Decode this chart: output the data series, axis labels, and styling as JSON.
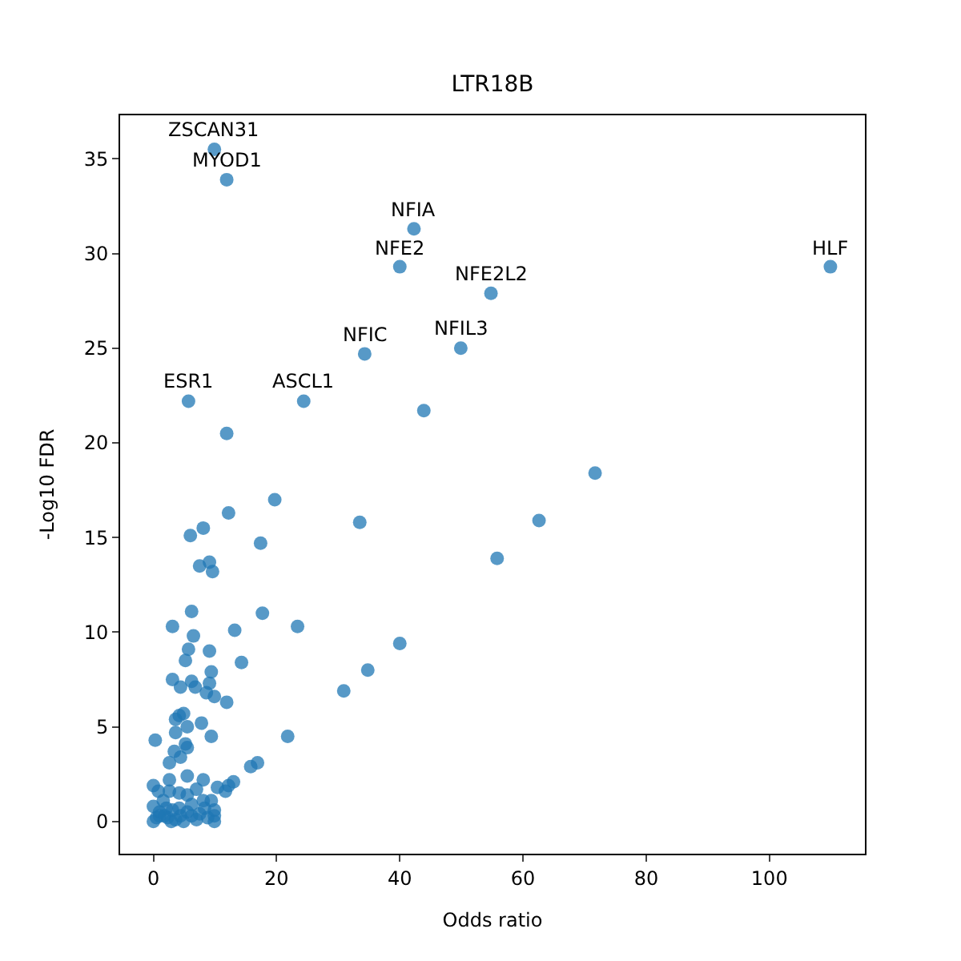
{
  "chart_data": {
    "type": "scatter",
    "title": "LTR18B",
    "xlabel": "Odds ratio",
    "ylabel": "-Log10 FDR",
    "xlim": [
      -5.4,
      115.5
    ],
    "ylim": [
      -1.7,
      37.3
    ],
    "xticks": [
      0,
      20,
      40,
      60,
      80,
      100
    ],
    "yticks": [
      0,
      5,
      10,
      15,
      20,
      25,
      30,
      35
    ],
    "marker": "circle",
    "series": [
      {
        "color": "#1f77b4",
        "x": [
          9.9,
          11.9,
          42.3,
          40.0,
          54.8,
          109.9,
          34.3,
          49.9,
          5.7,
          24.4,
          43.9,
          11.9,
          71.7,
          19.7,
          12.2,
          62.6,
          33.5,
          6.0,
          8.1,
          17.4,
          55.8,
          7.5,
          9.1,
          9.6,
          6.2,
          17.7,
          3.1,
          23.4,
          13.2,
          6.5,
          40.0,
          9.1,
          5.7,
          14.3,
          5.2,
          34.8,
          9.4,
          3.1,
          6.2,
          9.1,
          4.4,
          6.8,
          8.6,
          9.9,
          11.9,
          30.9,
          4.2,
          4.9,
          3.6,
          7.8,
          5.5,
          3.6,
          21.8,
          0.3,
          9.4,
          5.2,
          5.5,
          3.4,
          4.4,
          2.6,
          16.9,
          15.8,
          13.0,
          12.2,
          0,
          2.6,
          5.5,
          8.1,
          10.4,
          11.7,
          7.0,
          0.8,
          2.6,
          4.2,
          5.5,
          9.4,
          8.1,
          6.2,
          9.9,
          9.9,
          0.5,
          1.0,
          1.8,
          2.3,
          2.9,
          3.6,
          4.4,
          4.9,
          1.0,
          2.1,
          3.1,
          4.2,
          5.5,
          6.2,
          7.0,
          7.5,
          8.3,
          0,
          9.9,
          8.8,
          1.6,
          0
        ],
        "values": [
          35.5,
          33.9,
          31.3,
          29.3,
          27.9,
          29.3,
          24.7,
          25.0,
          22.2,
          22.2,
          21.7,
          20.5,
          18.4,
          17.0,
          16.3,
          15.9,
          15.8,
          15.1,
          15.5,
          14.7,
          13.9,
          13.5,
          13.7,
          13.2,
          11.1,
          11.0,
          10.3,
          10.3,
          10.1,
          9.8,
          9.4,
          9.0,
          9.1,
          8.4,
          8.5,
          8.0,
          7.9,
          7.5,
          7.4,
          7.3,
          7.1,
          7.1,
          6.8,
          6.6,
          6.3,
          6.9,
          5.6,
          5.7,
          5.4,
          5.2,
          5.0,
          4.7,
          4.5,
          4.3,
          4.5,
          4.1,
          3.9,
          3.7,
          3.4,
          3.1,
          3.1,
          2.9,
          2.1,
          1.9,
          1.9,
          2.2,
          2.4,
          2.2,
          1.8,
          1.6,
          1.7,
          1.6,
          1.6,
          1.5,
          1.4,
          1.1,
          1.1,
          0.9,
          0.3,
          0,
          0.2,
          0.3,
          0.3,
          0.2,
          0,
          0.1,
          0.3,
          0,
          0.5,
          0.7,
          0.6,
          0.7,
          0.5,
          0.3,
          0.1,
          0.4,
          0.7,
          0,
          0.6,
          0.2,
          1.1,
          0.8
        ]
      }
    ],
    "annotations": [
      {
        "text": "ZSCAN31",
        "x": 9.9,
        "y": 35.5
      },
      {
        "text": "MYOD1",
        "x": 11.9,
        "y": 33.9
      },
      {
        "text": "NFIA",
        "x": 42.3,
        "y": 31.3
      },
      {
        "text": "NFE2",
        "x": 40.0,
        "y": 29.3
      },
      {
        "text": "NFE2L2",
        "x": 54.8,
        "y": 27.9
      },
      {
        "text": "HLF",
        "x": 109.9,
        "y": 29.3
      },
      {
        "text": "NFIC",
        "x": 34.3,
        "y": 24.7
      },
      {
        "text": "NFIL3",
        "x": 49.9,
        "y": 25.0
      },
      {
        "text": "ESR1",
        "x": 5.7,
        "y": 22.2
      },
      {
        "text": "ASCL1",
        "x": 24.4,
        "y": 22.2
      }
    ]
  }
}
